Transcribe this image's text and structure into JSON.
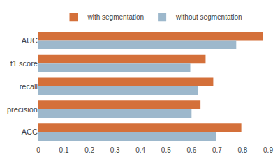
{
  "chart_data": {
    "type": "bar",
    "orientation": "horizontal",
    "categories": [
      "AUC",
      "f1 score",
      "recall",
      "precision",
      "ACC"
    ],
    "series": [
      {
        "name": "with segmentation",
        "color": "#d4703a",
        "values": [
          0.88,
          0.655,
          0.685,
          0.635,
          0.795
        ]
      },
      {
        "name": "without segmentation",
        "color": "#9db8cc",
        "values": [
          0.775,
          0.595,
          0.625,
          0.6,
          0.695
        ]
      }
    ],
    "xlim": [
      0,
      0.9
    ],
    "xticks": [
      0,
      0.1,
      0.2,
      0.3,
      0.4,
      0.5,
      0.6,
      0.7,
      0.8,
      0.9
    ],
    "grid": false,
    "legend": "top"
  }
}
